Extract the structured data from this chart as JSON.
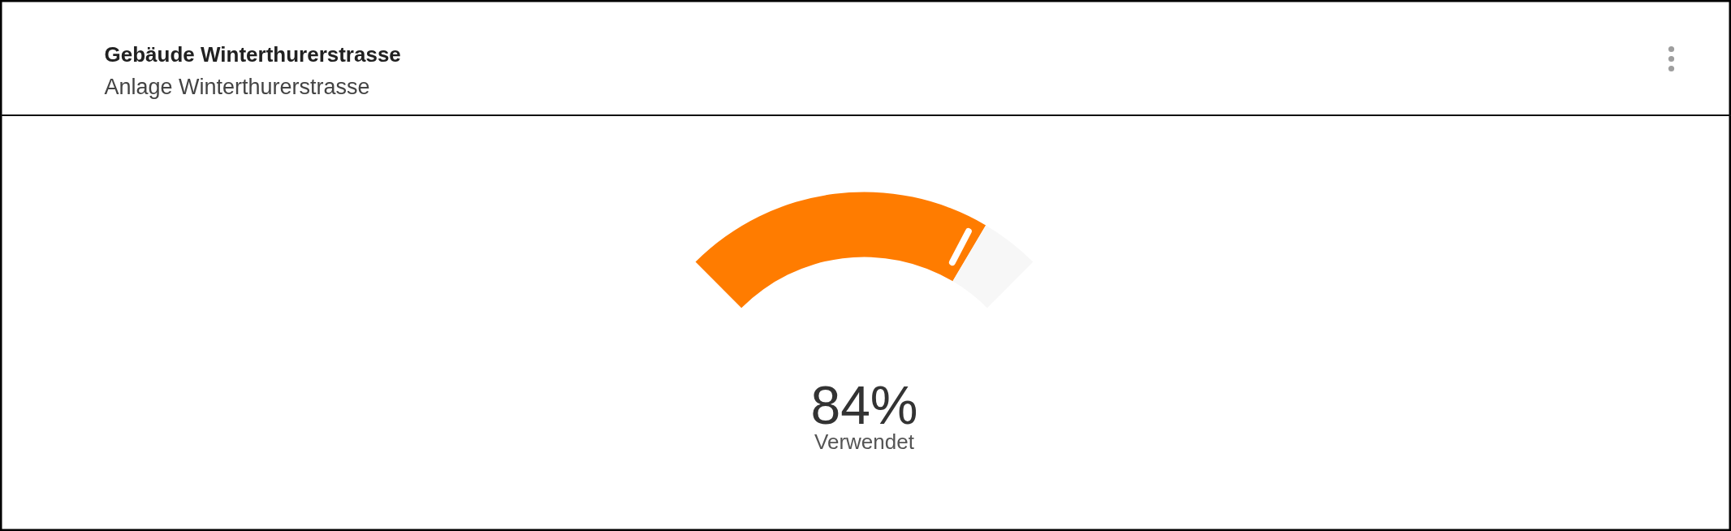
{
  "chart_data": {
    "type": "donut",
    "title": "Gebäude Winterthurerstrasse",
    "subtitle": "Anlage Winterthurerstrasse",
    "categories": [
      "Verwendet",
      null
    ],
    "values": [
      84,
      16
    ],
    "colors": [
      "#ff7c00",
      "#f7f7f7"
    ],
    "value_labels": [
      "84%",
      null
    ]
  }
}
